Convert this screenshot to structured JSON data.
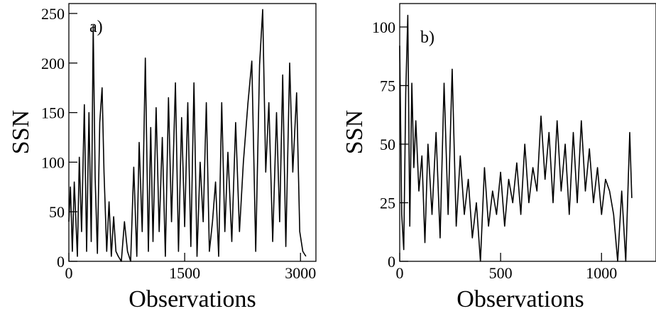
{
  "chart_data": [
    {
      "type": "line",
      "panel_label": "a)",
      "xlabel": "Observations",
      "ylabel": "SSN",
      "xlim": [
        0,
        3200
      ],
      "ylim": [
        0,
        260
      ],
      "xticks": [
        0,
        1500,
        3000
      ],
      "yticks": [
        0,
        50,
        100,
        150,
        200,
        250
      ],
      "grid": false,
      "series": [
        {
          "x": [
            0,
            20,
            45,
            70,
            110,
            135,
            165,
            200,
            230,
            260,
            290,
            315,
            340,
            370,
            400,
            430,
            455,
            490,
            520,
            550,
            580,
            610,
            640,
            680,
            720,
            760,
            800,
            840,
            880,
            910,
            950,
            990,
            1030,
            1060,
            1090,
            1130,
            1170,
            1210,
            1250,
            1290,
            1330,
            1380,
            1420,
            1460,
            1500,
            1540,
            1580,
            1620,
            1660,
            1700,
            1740,
            1780,
            1820,
            1860,
            1900,
            1940,
            1980,
            2020,
            2060,
            2110,
            2160,
            2210,
            2260,
            2320,
            2370,
            2420,
            2470,
            2510,
            2550,
            2590,
            2640,
            2690,
            2730,
            2770,
            2810,
            2860,
            2900,
            2950,
            2990,
            3030,
            3070
          ],
          "y": [
            40,
            75,
            10,
            80,
            5,
            105,
            30,
            158,
            10,
            150,
            20,
            238,
            85,
            8,
            140,
            175,
            90,
            10,
            60,
            5,
            45,
            10,
            5,
            0,
            40,
            10,
            0,
            95,
            5,
            120,
            30,
            205,
            10,
            135,
            20,
            155,
            30,
            125,
            5,
            165,
            40,
            180,
            10,
            145,
            35,
            160,
            15,
            180,
            5,
            100,
            40,
            160,
            10,
            40,
            80,
            5,
            160,
            30,
            110,
            20,
            140,
            30,
            100,
            160,
            202,
            10,
            198,
            254,
            90,
            160,
            20,
            150,
            40,
            188,
            15,
            200,
            90,
            170,
            30,
            10,
            5
          ]
        }
      ]
    },
    {
      "type": "line",
      "panel_label": "b)",
      "xlabel": "Observations",
      "ylabel": "SSN",
      "xlim": [
        0,
        1270
      ],
      "ylim": [
        0,
        110
      ],
      "xticks": [
        0,
        500,
        1000
      ],
      "yticks": [
        0,
        25,
        50,
        75,
        100
      ],
      "grid": false,
      "series": [
        {
          "x": [
            0,
            10,
            20,
            30,
            40,
            50,
            60,
            70,
            80,
            95,
            110,
            125,
            140,
            160,
            180,
            200,
            220,
            240,
            260,
            280,
            300,
            320,
            340,
            360,
            380,
            400,
            420,
            440,
            460,
            480,
            500,
            520,
            540,
            560,
            580,
            600,
            620,
            640,
            660,
            680,
            700,
            720,
            740,
            760,
            780,
            800,
            820,
            840,
            860,
            880,
            900,
            920,
            940,
            960,
            980,
            1000,
            1020,
            1040,
            1060,
            1080,
            1100,
            1120,
            1140,
            1150
          ],
          "y": [
            92,
            20,
            5,
            72,
            105,
            15,
            76,
            40,
            60,
            30,
            45,
            8,
            50,
            20,
            55,
            10,
            76,
            20,
            82,
            15,
            45,
            20,
            35,
            10,
            25,
            0,
            40,
            15,
            30,
            20,
            38,
            15,
            35,
            25,
            42,
            20,
            50,
            25,
            40,
            30,
            62,
            35,
            55,
            25,
            60,
            30,
            50,
            20,
            55,
            25,
            60,
            30,
            48,
            25,
            40,
            20,
            35,
            30,
            20,
            0,
            30,
            0,
            55,
            27
          ]
        }
      ]
    }
  ]
}
